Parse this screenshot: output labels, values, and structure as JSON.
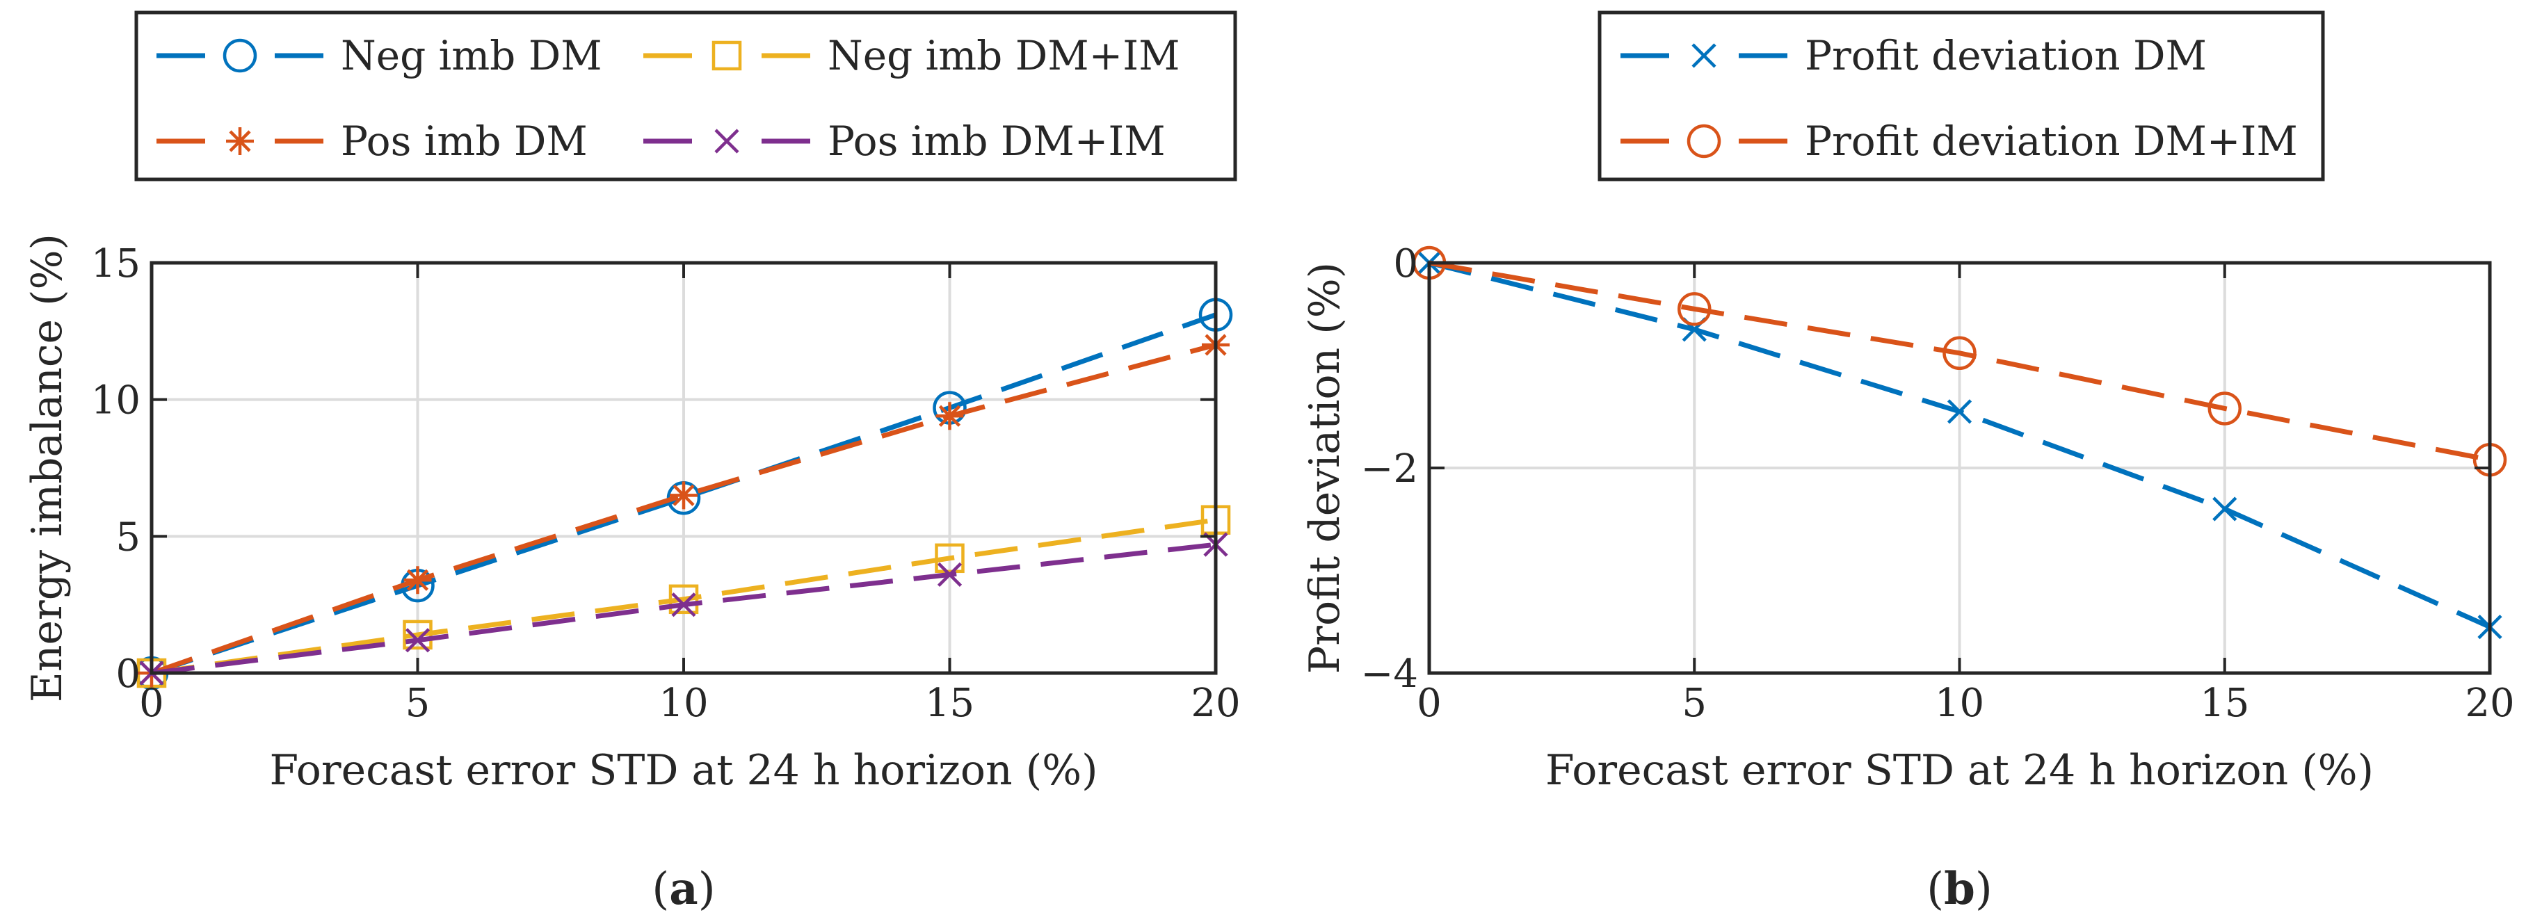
{
  "chart_data": [
    {
      "type": "line",
      "panel_label": "a",
      "title": "",
      "xlabel": "Forecast error STD at 24 h horizon (%)",
      "ylabel": "Energy imbalance (%)",
      "x": [
        0,
        5,
        10,
        15,
        20
      ],
      "xlim": [
        0,
        20
      ],
      "ylim": [
        0,
        15
      ],
      "xticks": [
        0,
        5,
        10,
        15,
        20
      ],
      "yticks": [
        0,
        5,
        10,
        15
      ],
      "grid": true,
      "legend_position": "above",
      "series": [
        {
          "name": "Neg imb DM",
          "marker": "circle",
          "color": "#0072BD",
          "values": [
            0,
            3.2,
            6.4,
            9.7,
            13.1
          ]
        },
        {
          "name": "Neg imb DM+IM",
          "marker": "square",
          "color": "#EDB120",
          "values": [
            0,
            1.4,
            2.7,
            4.2,
            5.6
          ]
        },
        {
          "name": "Pos imb DM",
          "marker": "asterisk",
          "color": "#D95319",
          "values": [
            0,
            3.4,
            6.5,
            9.4,
            12.0
          ]
        },
        {
          "name": "Pos imb DM+IM",
          "marker": "x",
          "color": "#7E2F8E",
          "values": [
            0,
            1.2,
            2.5,
            3.6,
            4.7
          ]
        }
      ]
    },
    {
      "type": "line",
      "panel_label": "b",
      "title": "",
      "xlabel": "Forecast error STD at 24 h horizon (%)",
      "ylabel": "Profit deviation (%)",
      "x": [
        0,
        5,
        10,
        15,
        20
      ],
      "xlim": [
        0,
        20
      ],
      "ylim": [
        -4,
        0
      ],
      "xticks": [
        0,
        5,
        10,
        15,
        20
      ],
      "yticks": [
        -4,
        -2,
        0
      ],
      "grid": true,
      "legend_position": "above",
      "series": [
        {
          "name": "Profit deviation DM",
          "marker": "x",
          "color": "#0072BD",
          "values": [
            0,
            -0.65,
            -1.45,
            -2.4,
            -3.55
          ]
        },
        {
          "name": "Profit deviation DM+IM",
          "marker": "circle",
          "color": "#D95319",
          "values": [
            0,
            -0.45,
            -0.88,
            -1.42,
            -1.92
          ]
        }
      ]
    }
  ]
}
